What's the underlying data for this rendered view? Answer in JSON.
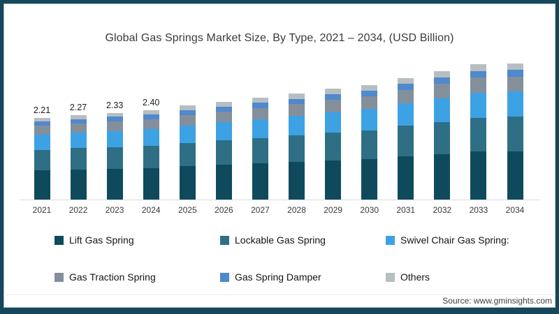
{
  "frame": {
    "border_color": "#16475A"
  },
  "chart_data": {
    "type": "bar",
    "stacked": true,
    "title": "Global Gas Springs Market Size, By Type, 2021 – 2034, (USD Billion)",
    "categories": [
      "2021",
      "2022",
      "2023",
      "2024",
      "2025",
      "2026",
      "2027",
      "2028",
      "2029",
      "2030",
      "2031",
      "2032",
      "2033",
      "2034"
    ],
    "series": [
      {
        "name": "Lift Gas Spring",
        "color": "#0E4A5C",
        "values": [
          0.78,
          0.81,
          0.83,
          0.85,
          0.89,
          0.93,
          0.97,
          1.01,
          1.05,
          1.09,
          1.16,
          1.22,
          1.29,
          1.3
        ]
      },
      {
        "name": "Lockable Gas Spring",
        "color": "#2E6F86",
        "values": [
          0.55,
          0.57,
          0.58,
          0.6,
          0.63,
          0.66,
          0.68,
          0.71,
          0.74,
          0.77,
          0.82,
          0.86,
          0.91,
          0.92
        ]
      },
      {
        "name": "Swivel Chair Gas Spring:",
        "color": "#3DA2E4",
        "values": [
          0.41,
          0.42,
          0.43,
          0.44,
          0.47,
          0.48,
          0.51,
          0.53,
          0.55,
          0.57,
          0.6,
          0.64,
          0.67,
          0.68
        ]
      },
      {
        "name": "Gas Traction Spring",
        "color": "#848F9C",
        "values": [
          0.24,
          0.25,
          0.26,
          0.27,
          0.28,
          0.29,
          0.3,
          0.31,
          0.33,
          0.34,
          0.36,
          0.38,
          0.4,
          0.4
        ]
      },
      {
        "name": "Gas Spring Damper",
        "color": "#4F89CE",
        "values": [
          0.11,
          0.11,
          0.12,
          0.12,
          0.13,
          0.13,
          0.14,
          0.14,
          0.15,
          0.15,
          0.16,
          0.17,
          0.18,
          0.18
        ]
      },
      {
        "name": "Others",
        "color": "#B6BEC1",
        "values": [
          0.11,
          0.11,
          0.11,
          0.12,
          0.13,
          0.13,
          0.14,
          0.14,
          0.15,
          0.15,
          0.16,
          0.17,
          0.18,
          0.18
        ]
      }
    ],
    "totals": [
      2.21,
      2.27,
      2.33,
      2.4,
      2.53,
      2.62,
      2.74,
      2.84,
      2.97,
      3.07,
      3.26,
      3.44,
      3.63,
      3.66
    ],
    "value_labels": [
      "2.21",
      "2.27",
      "2.33",
      "2.40",
      "",
      "",
      "",
      "",
      "",
      "",
      "",
      "",
      "",
      ""
    ],
    "ylim": [
      0,
      3.8
    ],
    "grid": false,
    "legend_position": "bottom",
    "legend_rows": [
      [
        "Lift Gas Spring",
        "Lockable Gas Spring",
        "Swivel Chair Gas Spring:"
      ],
      [
        "Gas Traction Spring",
        "Gas Spring Damper",
        "Others"
      ]
    ]
  },
  "footer": {
    "source_label": "Source: www.gminsights.com"
  }
}
